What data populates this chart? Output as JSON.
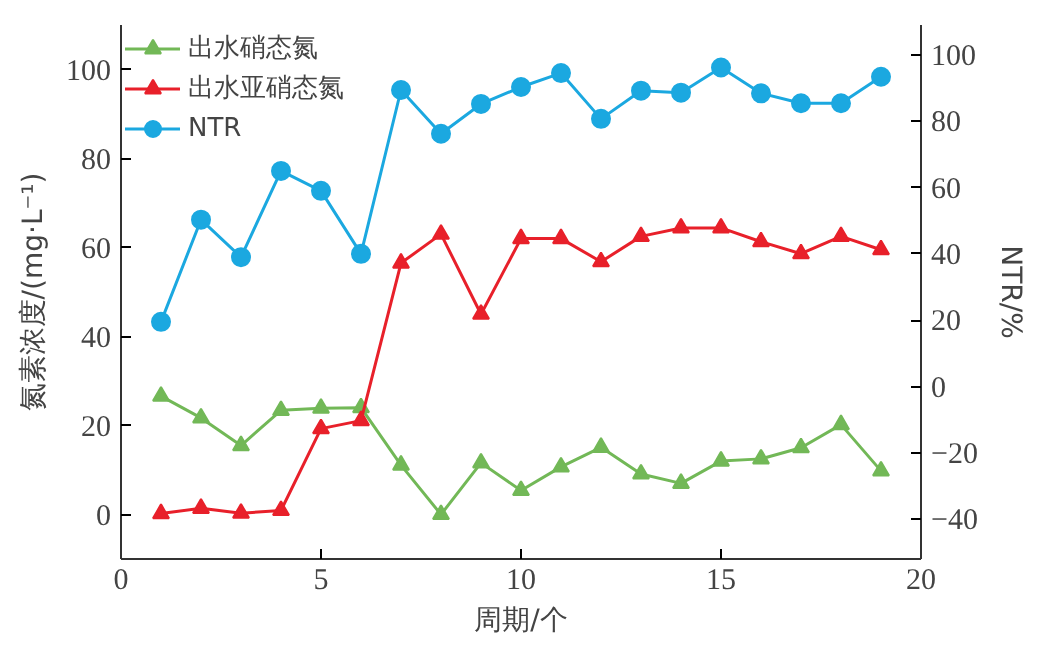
{
  "chart_data": {
    "type": "line",
    "xlabel": "周期/个",
    "ylabel": "氮素浓度/(mg·L⁻¹)",
    "y2label": "NTR/%",
    "x": [
      1,
      2,
      3,
      4,
      5,
      6,
      7,
      8,
      9,
      10,
      11,
      12,
      13,
      14,
      15,
      16,
      17,
      18,
      19
    ],
    "xlim": [
      0,
      20
    ],
    "xticks": [
      0,
      5,
      10,
      15,
      20
    ],
    "ylim": [
      -10,
      110
    ],
    "yticks": [
      0,
      20,
      40,
      60,
      80,
      100
    ],
    "y2lim": [
      -52,
      109
    ],
    "y2ticks": [
      -40,
      -20,
      0,
      20,
      40,
      60,
      80,
      100
    ],
    "grid": false,
    "legend": "top left",
    "line_style": "solid",
    "series": [
      {
        "name": "出水硝态氮",
        "color": "#72b857",
        "marker": "triangle",
        "values": [
          26.6,
          21.7,
          15.5,
          23.4,
          23.9,
          24,
          11.1,
          0,
          11.6,
          5.4,
          10.7,
          15.1,
          9.1,
          7,
          12,
          12.5,
          15,
          20.2,
          9.8
        ]
      },
      {
        "name": "出水亚硝态氮",
        "color": "#e8202a",
        "marker": "triangle",
        "values": [
          0.2,
          1.4,
          0.3,
          0.9,
          19.3,
          21.1,
          56.5,
          63,
          45,
          62,
          62,
          56.8,
          62.5,
          64.4,
          64.4,
          61.3,
          58.6,
          62.5,
          59.5
        ]
      },
      {
        "name": "NTR",
        "color": "#1ba8e0",
        "marker": "circle",
        "axis": "y2",
        "values": [
          19.5,
          50.3,
          39,
          65,
          59,
          40,
          89.4,
          76.2,
          85.2,
          90.3,
          94.5,
          80.7,
          89.2,
          88.6,
          96.2,
          88.4,
          85.4,
          85.4,
          93.4
        ]
      }
    ]
  }
}
